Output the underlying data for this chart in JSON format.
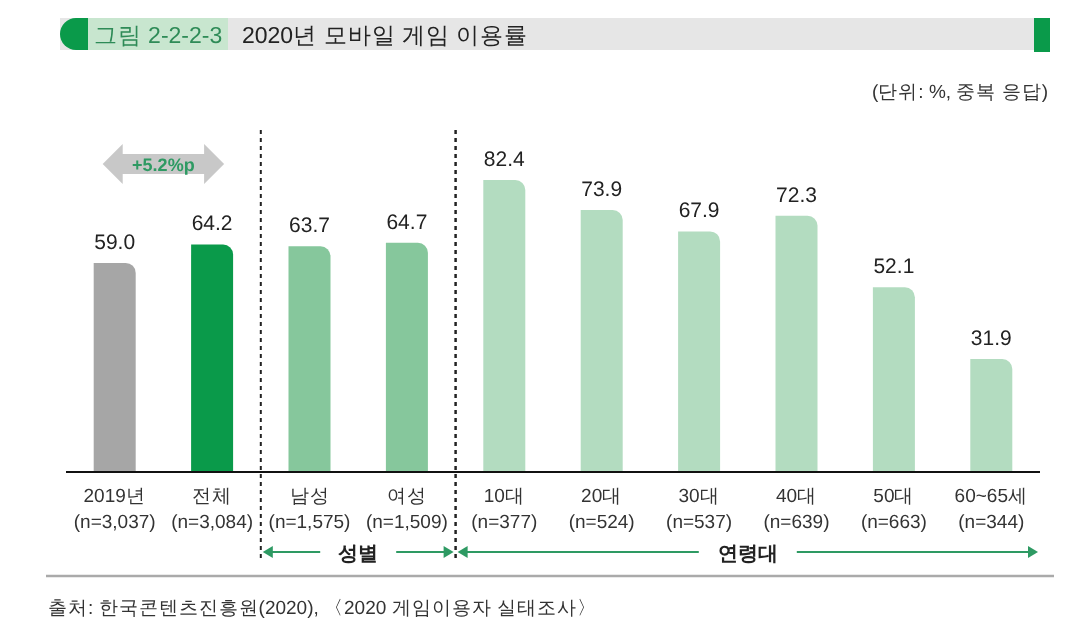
{
  "chart_data": {
    "type": "bar",
    "title": "2020년 모바일 게임 이용률",
    "categories": [
      "2019년\n(n=3,037)",
      "전체\n(n=3,084)",
      "남성\n(n=1,575)",
      "여성\n(n=1,509)",
      "10대\n(n=377)",
      "20대\n(n=524)",
      "30대\n(n=537)",
      "40대\n(n=639)",
      "50대\n(n=663)",
      "60~65세\n(n=344)"
    ],
    "values": [
      59.0,
      64.2,
      63.7,
      64.7,
      82.4,
      73.9,
      67.9,
      72.3,
      52.1,
      31.9
    ],
    "value_labels": [
      "59.0",
      "64.2",
      "63.7",
      "64.7",
      "82.4",
      "73.9",
      "67.9",
      "72.3",
      "52.1",
      "31.9"
    ],
    "colors": [
      "#a6a6a6",
      "#0a9a4a",
      "#86c79c",
      "#86c79c",
      "#b3dcc0",
      "#b3dcc0",
      "#b3dcc0",
      "#b3dcc0",
      "#b3dcc0",
      "#b3dcc0"
    ],
    "annotations": [
      "그림 2-2-2-3",
      "(단위: %, 중복 응답)",
      "+5.2%p",
      "출처: 한국콘텐츠진흥원(2020), 〈2020 게임이용자 실태조사〉",
      "성별",
      "연령대"
    ]
  }
}
